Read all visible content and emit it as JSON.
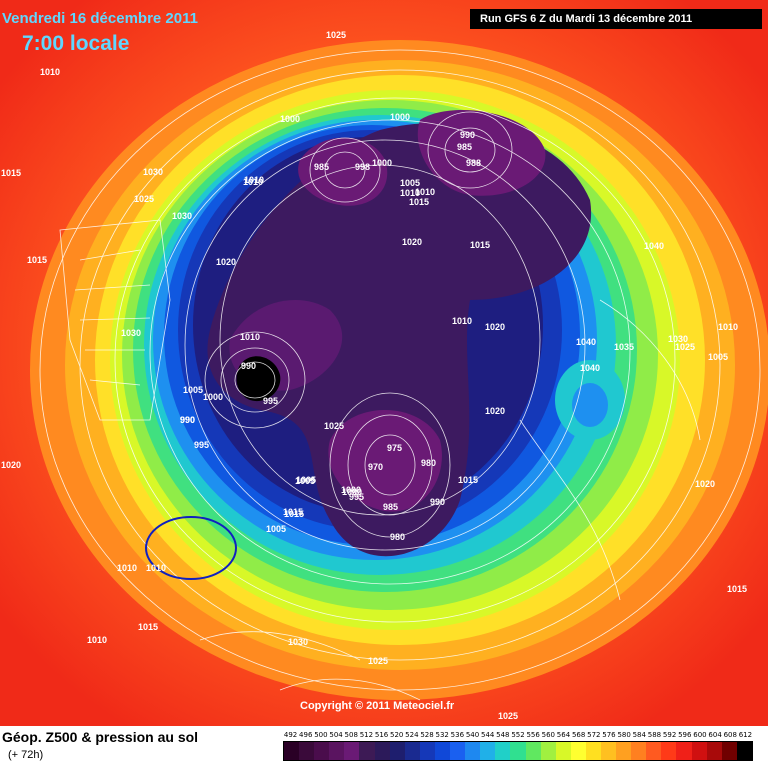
{
  "header": {
    "date": "Vendredi 16 décembre 2011",
    "time": "7:00 locale",
    "run": "Run GFS 6 Z du Mardi 13 décembre 2011"
  },
  "copyright": "Copyright © 2011 Meteociel.fr",
  "footer": {
    "title": "Géop. Z500 & pression au sol",
    "subtitle": "(+ 72h)"
  },
  "scale": {
    "labels": [
      "492",
      "496",
      "500",
      "504",
      "508",
      "512",
      "516",
      "520",
      "524",
      "528",
      "532",
      "536",
      "540",
      "544",
      "548",
      "552",
      "556",
      "560",
      "564",
      "568",
      "572",
      "576",
      "580",
      "584",
      "588",
      "592",
      "596",
      "600",
      "604",
      "608",
      "612"
    ],
    "colors": [
      "#2a0026",
      "#3a0a3a",
      "#4a0d4c",
      "#5a1460",
      "#6a1a75",
      "#3d1a55",
      "#2c1a5a",
      "#1e1e6e",
      "#1a2a90",
      "#1538b8",
      "#1048d8",
      "#1a60f0",
      "#1e88f0",
      "#20b0e8",
      "#20d0c8",
      "#30e090",
      "#60e860",
      "#a0f040",
      "#d8f828",
      "#ffff30",
      "#ffe020",
      "#ffc020",
      "#ffa020",
      "#ff8020",
      "#ff5a20",
      "#ff3a18",
      "#f02018",
      "#d01010",
      "#a80a0a",
      "#700000",
      "#000000"
    ]
  },
  "pressure_labels": [
    "1025",
    "1015",
    "1010",
    "1030",
    "1025",
    "1030",
    "1010",
    "1015",
    "1020",
    "1030",
    "1010",
    "1005",
    "1000",
    "990",
    "995",
    "995",
    "990",
    "1000",
    "1020",
    "1025",
    "1010",
    "1015",
    "1005",
    "1015",
    "1000",
    "995",
    "985",
    "980",
    "975",
    "970",
    "980",
    "990",
    "1005",
    "1010",
    "1000",
    "1020",
    "1015",
    "1010",
    "1020",
    "1040",
    "1040",
    "1040",
    "1035",
    "1030",
    "1025",
    "1010",
    "1005",
    "1020",
    "1015",
    "1010",
    "1000",
    "1025",
    "1030",
    "1025",
    "1015",
    "1010",
    "1005",
    "1015",
    "1010",
    "1000",
    "985",
    "985",
    "990",
    "988",
    "1005",
    "1010",
    "1015",
    "1020",
    "990",
    "998"
  ],
  "markers": {
    "circle_color": "#1020c0"
  }
}
